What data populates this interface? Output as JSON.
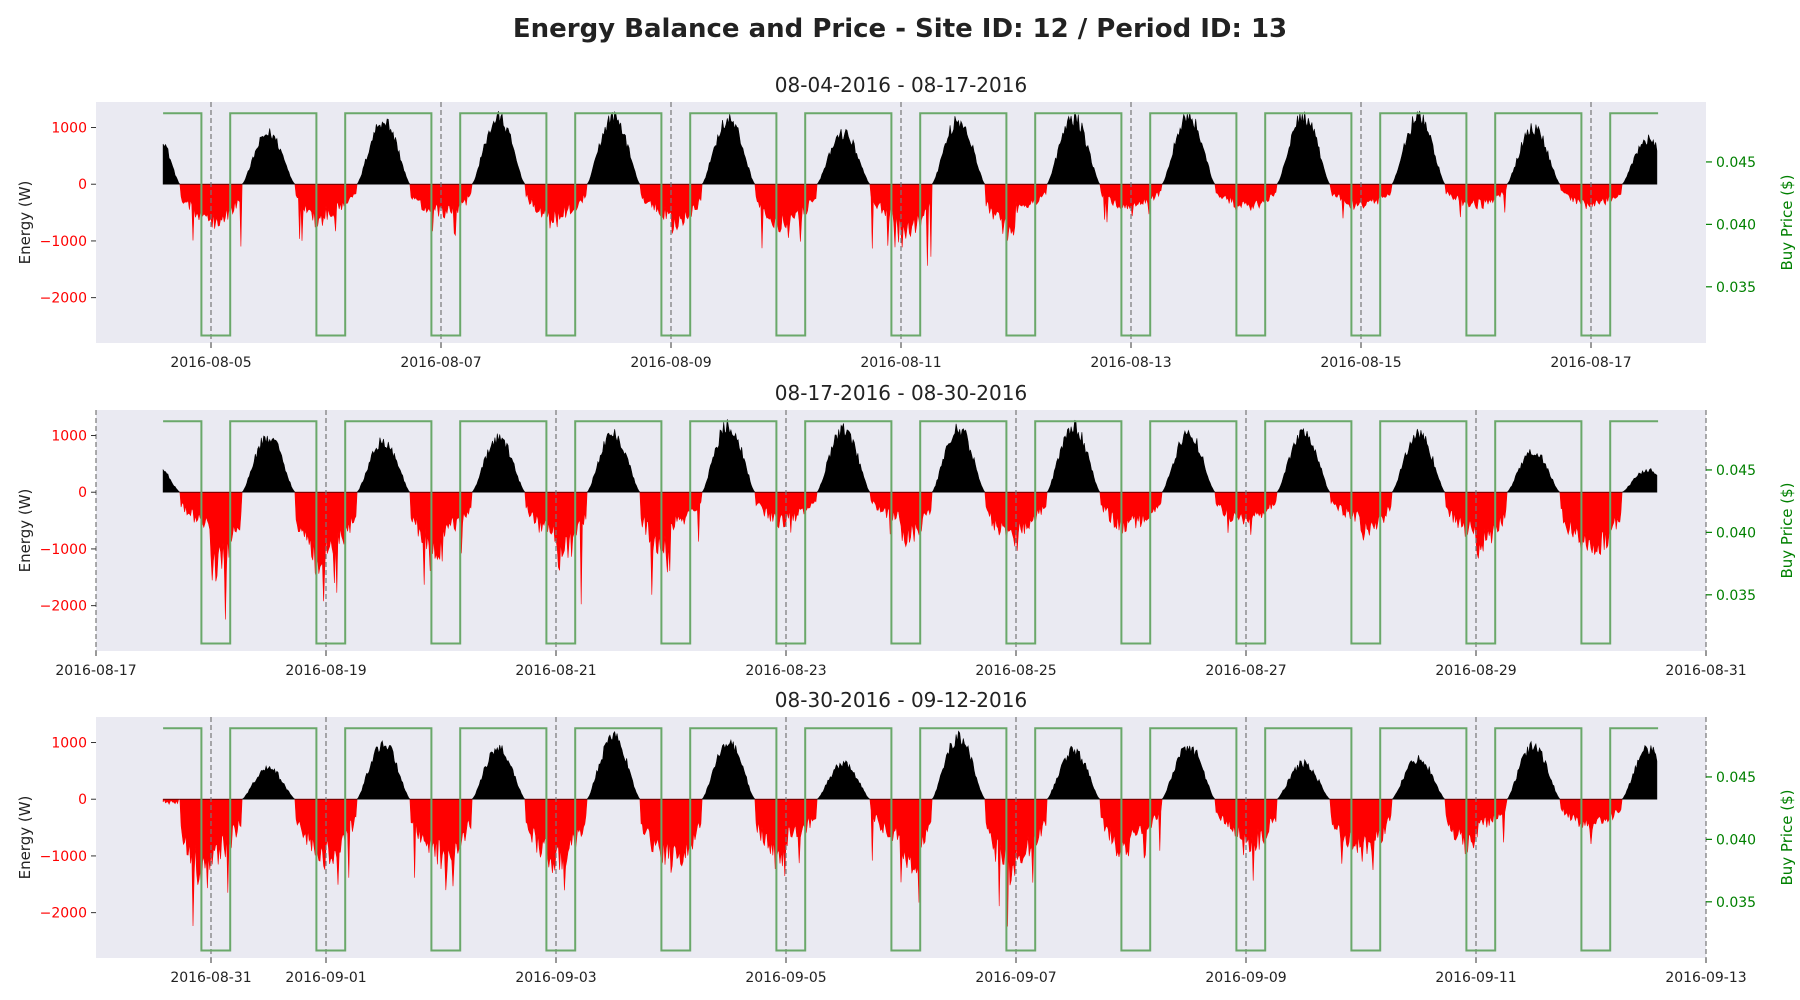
{
  "title": "Energy Balance and Price - Site ID: 12 / Period ID: 13",
  "colors": {
    "background": "#eaeaf2",
    "positive_fill": "#000000",
    "negative_fill": "#ff0000",
    "price_line": "#6aa86a",
    "day_divider": "#777777",
    "left_tick_color": "#ff0000",
    "right_tick_color": "#008000"
  },
  "chart_data": [
    {
      "type": "area",
      "subtitle": "08-04-2016 - 08-17-2016",
      "ylabel": "Energy (W)",
      "y2label": "Buy Price ($)",
      "xlim": [
        "2016-08-04",
        "2016-08-18"
      ],
      "ylim": [
        -2800,
        1450
      ],
      "y2lim": [
        0.0305,
        0.0498
      ],
      "yticks": [
        1000,
        0,
        -1000,
        -2000
      ],
      "ytick_labels": [
        "1000",
        "0",
        "−1000",
        "−2000"
      ],
      "y2ticks": [
        0.045,
        0.04,
        0.035
      ],
      "y2tick_labels": [
        "0.045",
        "0.040",
        "0.035"
      ],
      "xticks": [
        "2016-08-05",
        "2016-08-07",
        "2016-08-09",
        "2016-08-11",
        "2016-08-13",
        "2016-08-15",
        "2016-08-17"
      ],
      "day_dividers": [
        "2016-08-05",
        "2016-08-07",
        "2016-08-09",
        "2016-08-11",
        "2016-08-13",
        "2016-08-15",
        "2016-08-17"
      ],
      "data_start": "2016-08-04T14:00",
      "data_end": "2016-08-17T14:00",
      "energy_curve": "daily solar surplus peaks (~midday) and overnight consumption deficits",
      "daily_peaks_W": [
        1150,
        1000,
        1250,
        1300,
        1320,
        1270,
        1000,
        1250,
        1300,
        1340,
        1330,
        1320,
        1100,
        880
      ],
      "daily_troughs_W": [
        -1050,
        -1200,
        -900,
        -1000,
        -950,
        -1250,
        -1150,
        -1650,
        -750,
        -650,
        -700,
        -650,
        -650
      ],
      "price": {
        "high": 0.0489,
        "low": 0.0311,
        "low_window_hours": [
          22,
          4
        ]
      }
    },
    {
      "type": "area",
      "subtitle": "08-17-2016 - 08-30-2016",
      "ylabel": "Energy (W)",
      "y2label": "Buy Price ($)",
      "xlim": [
        "2016-08-17",
        "2016-08-31"
      ],
      "ylim": [
        -2800,
        1450
      ],
      "y2lim": [
        0.0305,
        0.0498
      ],
      "yticks": [
        1000,
        0,
        -1000,
        -2000
      ],
      "ytick_labels": [
        "1000",
        "0",
        "−1000",
        "−2000"
      ],
      "y2ticks": [
        0.045,
        0.04,
        0.035
      ],
      "y2tick_labels": [
        "0.045",
        "0.040",
        "0.035"
      ],
      "xticks": [
        "2016-08-17",
        "2016-08-19",
        "2016-08-21",
        "2016-08-23",
        "2016-08-25",
        "2016-08-27",
        "2016-08-29",
        "2016-08-31"
      ],
      "day_dividers": [
        "2016-08-17",
        "2016-08-19",
        "2016-08-21",
        "2016-08-23",
        "2016-08-25",
        "2016-08-27",
        "2016-08-29",
        "2016-08-31"
      ],
      "data_start": "2016-08-17T14:00",
      "data_end": "2016-08-30T14:00",
      "energy_curve": "daily solar surplus peaks (~midday) and overnight consumption deficits",
      "daily_peaks_W": [
        600,
        1100,
        1000,
        1050,
        1150,
        1330,
        1250,
        1250,
        1280,
        1150,
        1200,
        1150,
        800,
        450
      ],
      "daily_troughs_W": [
        -1000,
        -2400,
        -1800,
        -1300,
        -2050,
        -950,
        -800,
        -1500,
        -1150,
        -950,
        -800,
        -1250,
        -1750
      ],
      "price": {
        "high": 0.0489,
        "low": 0.0311,
        "low_window_hours": [
          22,
          4
        ]
      }
    },
    {
      "type": "area",
      "subtitle": "08-30-2016 - 09-12-2016",
      "ylabel": "Energy (W)",
      "y2label": "Buy Price ($)",
      "xlim": [
        "2016-08-30",
        "2016-09-13"
      ],
      "ylim": [
        -2800,
        1450
      ],
      "y2lim": [
        0.0305,
        0.0498
      ],
      "yticks": [
        1000,
        0,
        -1000,
        -2000
      ],
      "ytick_labels": [
        "1000",
        "0",
        "−1000",
        "−2000"
      ],
      "y2ticks": [
        0.045,
        0.04,
        0.035
      ],
      "y2tick_labels": [
        "0.045",
        "0.040",
        "0.035"
      ],
      "xticks": [
        "2016-08-31",
        "2016-09-01",
        "2016-09-03",
        "2016-09-05",
        "2016-09-07",
        "2016-09-09",
        "2016-09-11",
        "2016-09-13"
      ],
      "day_dividers": [
        "2016-08-31",
        "2016-09-01",
        "2016-09-03",
        "2016-09-05",
        "2016-09-07",
        "2016-09-09",
        "2016-09-11",
        "2016-09-13"
      ],
      "data_start": "2016-08-30T14:00",
      "data_end": "2016-09-12T14:00",
      "energy_curve": "daily solar surplus peaks (~midday) and overnight consumption deficits",
      "daily_peaks_W": [
        -300,
        600,
        1100,
        1000,
        1200,
        1100,
        700,
        1200,
        950,
        1050,
        700,
        800,
        1050,
        980
      ],
      "daily_troughs_W": [
        -2550,
        -1800,
        -1700,
        -1900,
        -1850,
        -1950,
        -1250,
        -2300,
        -1750,
        -1050,
        -1500,
        -1600,
        -800
      ],
      "price": {
        "high": 0.0489,
        "low": 0.0311,
        "low_window_hours": [
          22,
          4
        ]
      }
    }
  ]
}
